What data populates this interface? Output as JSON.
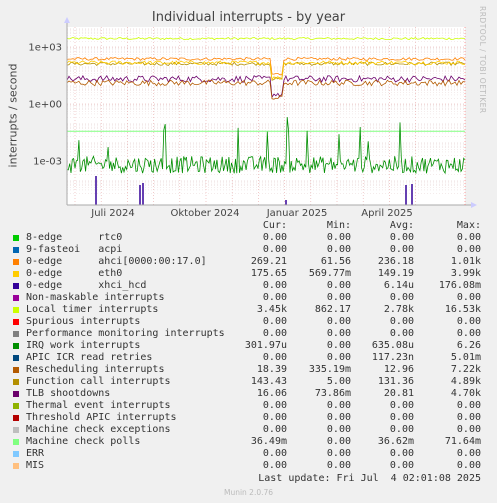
{
  "title": "Individual interrupts - by year",
  "ylabel": "interrupts / second",
  "side_label": "RRDTOOL / TOBI OETIKER",
  "footer": "Munin 2.0.76",
  "last_update": "Last update: Fri Jul  4 02:01:08 2025",
  "legend_headers": {
    "cur": "Cur:",
    "min": "Min:",
    "avg": "Avg:",
    "max": "Max:"
  },
  "legend": [
    {
      "name": "8-edge      rtc0",
      "color": "#00cc00",
      "cur": "0.00",
      "min": "0.00",
      "avg": "0.00",
      "max": "0.00"
    },
    {
      "name": "9-fasteoi   acpi",
      "color": "#0066b3",
      "cur": "0.00",
      "min": "0.00",
      "avg": "0.00",
      "max": "0.00"
    },
    {
      "name": "0-edge      ahci[0000:00:17.0]",
      "color": "#ff8000",
      "cur": "269.21",
      "min": "61.56",
      "avg": "236.18",
      "max": "1.01k"
    },
    {
      "name": "0-edge      eth0",
      "color": "#ffcc00",
      "cur": "175.65",
      "min": "569.77m",
      "avg": "149.19",
      "max": "3.99k"
    },
    {
      "name": "0-edge      xhci_hcd",
      "color": "#330099",
      "cur": "0.00",
      "min": "0.00",
      "avg": "6.14u",
      "max": "176.08m"
    },
    {
      "name": "Non-maskable interrupts",
      "color": "#990099",
      "cur": "0.00",
      "min": "0.00",
      "avg": "0.00",
      "max": "0.00"
    },
    {
      "name": "Local timer interrupts",
      "color": "#ccff00",
      "cur": "3.45k",
      "min": "862.17",
      "avg": "2.78k",
      "max": "16.53k"
    },
    {
      "name": "Spurious interrupts",
      "color": "#ff0000",
      "cur": "0.00",
      "min": "0.00",
      "avg": "0.00",
      "max": "0.00"
    },
    {
      "name": "Performance monitoring interrupts",
      "color": "#808080",
      "cur": "0.00",
      "min": "0.00",
      "avg": "0.00",
      "max": "0.00"
    },
    {
      "name": "IRQ work interrupts",
      "color": "#008f00",
      "cur": "301.97u",
      "min": "0.00",
      "avg": "635.08u",
      "max": "6.26"
    },
    {
      "name": "APIC ICR read retries",
      "color": "#00487d",
      "cur": "0.00",
      "min": "0.00",
      "avg": "117.23n",
      "max": "5.01m"
    },
    {
      "name": "Rescheduling interrupts",
      "color": "#b35a00",
      "cur": "18.39",
      "min": "335.19m",
      "avg": "12.96",
      "max": "7.22k"
    },
    {
      "name": "Function call interrupts",
      "color": "#b38f00",
      "cur": "143.43",
      "min": "5.00",
      "avg": "131.36",
      "max": "4.89k"
    },
    {
      "name": "TLB shootdowns",
      "color": "#6b006b",
      "cur": "16.06",
      "min": "73.86m",
      "avg": "20.81",
      "max": "4.70k"
    },
    {
      "name": "Thermal event interrupts",
      "color": "#8fb300",
      "cur": "0.00",
      "min": "0.00",
      "avg": "0.00",
      "max": "0.00"
    },
    {
      "name": "Threshold APIC interrupts",
      "color": "#b30000",
      "cur": "0.00",
      "min": "0.00",
      "avg": "0.00",
      "max": "0.00"
    },
    {
      "name": "Machine check exceptions",
      "color": "#bebebe",
      "cur": "0.00",
      "min": "0.00",
      "avg": "0.00",
      "max": "0.00"
    },
    {
      "name": "Machine check polls",
      "color": "#80ff80",
      "cur": "36.49m",
      "min": "0.00",
      "avg": "36.62m",
      "max": "71.64m"
    },
    {
      "name": "ERR",
      "color": "#80c9ff",
      "cur": "0.00",
      "min": "0.00",
      "avg": "0.00",
      "max": "0.00"
    },
    {
      "name": "MIS",
      "color": "#ffc080",
      "cur": "0.00",
      "min": "0.00",
      "avg": "0.00",
      "max": "0.00"
    }
  ],
  "chart_data": {
    "type": "line",
    "title": "Individual interrupts - by year",
    "ylabel": "interrupts / second",
    "y_scale": "log",
    "y_ticks": [
      "1e+03",
      "1e+00",
      "1e-03"
    ],
    "x_ticks": [
      "Juli 2024",
      "Oktober 2024",
      "Januar 2025",
      "April 2025"
    ],
    "grid": true,
    "series": [
      {
        "name": "Local timer interrupts",
        "color": "#ccff00",
        "level": 2780
      },
      {
        "name": "0-edge      ahci[0000:00:17.0]",
        "color": "#ff8000",
        "level": 236.18
      },
      {
        "name": "Function call interrupts",
        "color": "#b38f00",
        "level": 131.36
      },
      {
        "name": "0-edge      eth0",
        "color": "#ffcc00",
        "level": 149.19
      },
      {
        "name": "TLB shootdowns",
        "color": "#6b006b",
        "level": 20.81
      },
      {
        "name": "Rescheduling interrupts",
        "color": "#b35a00",
        "level": 12.96
      },
      {
        "name": "Machine check polls",
        "color": "#80ff80",
        "level": 0.03662
      },
      {
        "name": "IRQ work interrupts",
        "color": "#008f00",
        "level": 0.000635
      }
    ]
  }
}
